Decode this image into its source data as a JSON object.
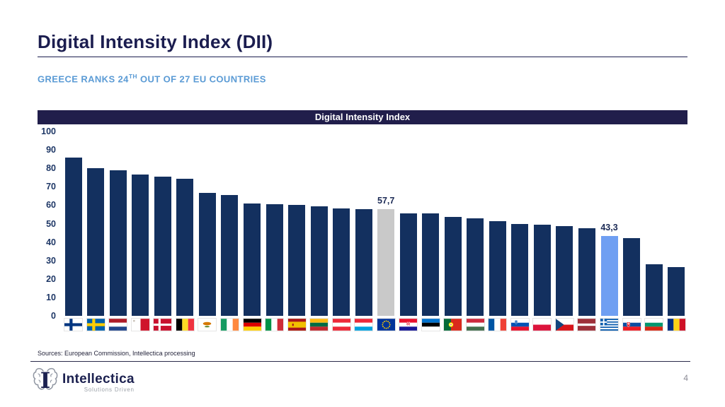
{
  "header": {
    "title": "Digital Intensity Index (DII)",
    "subtitle_prefix": "GREECE RANKS 24",
    "subtitle_sup": "TH",
    "subtitle_suffix": " OUT OF 27 EU COUNTRIES",
    "subtitle_color": "#5b9bd5",
    "title_color": "#1b1d4f"
  },
  "chart_data": {
    "type": "bar",
    "title": "Digital Intensity Index",
    "xlabel": "",
    "ylabel": "",
    "ylim": [
      0,
      100
    ],
    "yticks": [
      100,
      90,
      80,
      70,
      60,
      50,
      40,
      30,
      20,
      10,
      0
    ],
    "grid": false,
    "legend": false,
    "x_axis_labels": "country-flag-icons",
    "colors": {
      "bar": "#13305f",
      "eu_bar": "#c9c9c9",
      "greece_bar": "#6f9ff2",
      "band": "#211e4b",
      "label_text": "#1b2a55"
    },
    "bars": [
      {
        "name": "Finland",
        "flag": "fi",
        "value": 86
      },
      {
        "name": "Sweden",
        "flag": "se",
        "value": 80
      },
      {
        "name": "Netherlands",
        "flag": "nl",
        "value": 79
      },
      {
        "name": "Malta",
        "flag": "mt",
        "value": 76.5
      },
      {
        "name": "Denmark",
        "flag": "dk",
        "value": 75.5
      },
      {
        "name": "Belgium",
        "flag": "be",
        "value": 74.5
      },
      {
        "name": "Cyprus",
        "flag": "cy",
        "value": 66.5
      },
      {
        "name": "Ireland",
        "flag": "ie",
        "value": 65.5
      },
      {
        "name": "Germany",
        "flag": "de",
        "value": 61
      },
      {
        "name": "Italy",
        "flag": "it",
        "value": 60.5
      },
      {
        "name": "Spain",
        "flag": "es",
        "value": 60
      },
      {
        "name": "Lithuania",
        "flag": "lt",
        "value": 59.5
      },
      {
        "name": "Austria",
        "flag": "at",
        "value": 58.3
      },
      {
        "name": "Luxembourg",
        "flag": "lu",
        "value": 58
      },
      {
        "name": "EU",
        "flag": "eu",
        "value": 57.7,
        "label": "57,7",
        "color": "#c9c9c9"
      },
      {
        "name": "Croatia",
        "flag": "hr",
        "value": 55.5
      },
      {
        "name": "Estonia",
        "flag": "ee",
        "value": 55.5
      },
      {
        "name": "Portugal",
        "flag": "pt",
        "value": 53.5
      },
      {
        "name": "Hungary",
        "flag": "hu",
        "value": 53
      },
      {
        "name": "France",
        "flag": "fr",
        "value": 51.5
      },
      {
        "name": "Slovenia",
        "flag": "si",
        "value": 50
      },
      {
        "name": "Poland",
        "flag": "pl",
        "value": 49.5
      },
      {
        "name": "Czechia",
        "flag": "cz",
        "value": 48.5
      },
      {
        "name": "Latvia",
        "flag": "lv",
        "value": 47.5
      },
      {
        "name": "Greece",
        "flag": "gr",
        "value": 43.3,
        "label": "43,3",
        "color": "#6f9ff2"
      },
      {
        "name": "Slovakia",
        "flag": "sk",
        "value": 42
      },
      {
        "name": "Bulgaria",
        "flag": "bg",
        "value": 28
      },
      {
        "name": "Romania",
        "flag": "ro",
        "value": 26.5
      }
    ]
  },
  "footer": {
    "sources": "Sources: European Commission, Intellectica processing",
    "logo_name": "Intellectica",
    "logo_tagline": "Solutions Driven",
    "logo_icon": "brain-i-icon",
    "page_number": "4"
  }
}
